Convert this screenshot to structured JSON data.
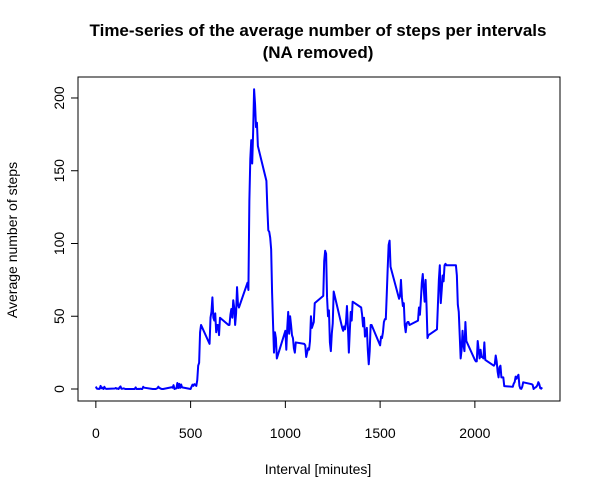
{
  "chart_data": {
    "type": "line",
    "title": "Time-series of the average number of steps per intervals",
    "subtitle": "(NA removed)",
    "x_label": "Interval [minutes]",
    "y_label": "Average number of steps",
    "x": [
      0,
      5,
      10,
      15,
      20,
      25,
      30,
      35,
      40,
      45,
      50,
      55,
      100,
      105,
      110,
      115,
      120,
      125,
      130,
      135,
      140,
      145,
      150,
      155,
      200,
      205,
      210,
      215,
      220,
      225,
      230,
      235,
      240,
      245,
      250,
      255,
      300,
      305,
      310,
      315,
      320,
      325,
      330,
      335,
      340,
      345,
      350,
      355,
      400,
      405,
      410,
      415,
      420,
      425,
      430,
      435,
      440,
      445,
      450,
      455,
      500,
      505,
      510,
      515,
      520,
      525,
      530,
      535,
      540,
      545,
      550,
      555,
      600,
      605,
      610,
      615,
      620,
      625,
      630,
      635,
      640,
      645,
      650,
      655,
      700,
      705,
      710,
      715,
      720,
      725,
      730,
      735,
      740,
      745,
      750,
      755,
      800,
      805,
      810,
      815,
      820,
      825,
      830,
      835,
      840,
      845,
      850,
      855,
      900,
      905,
      910,
      915,
      920,
      925,
      930,
      935,
      940,
      945,
      950,
      955,
      1000,
      1005,
      1010,
      1015,
      1020,
      1025,
      1030,
      1035,
      1040,
      1045,
      1050,
      1055,
      1100,
      1105,
      1110,
      1115,
      1120,
      1125,
      1130,
      1135,
      1140,
      1145,
      1150,
      1155,
      1200,
      1205,
      1210,
      1215,
      1220,
      1225,
      1230,
      1235,
      1240,
      1245,
      1250,
      1255,
      1300,
      1305,
      1310,
      1315,
      1320,
      1325,
      1330,
      1335,
      1340,
      1345,
      1350,
      1355,
      1400,
      1405,
      1410,
      1415,
      1420,
      1425,
      1430,
      1435,
      1440,
      1445,
      1450,
      1455,
      1500,
      1505,
      1510,
      1515,
      1520,
      1525,
      1530,
      1535,
      1540,
      1545,
      1550,
      1555,
      1600,
      1605,
      1610,
      1615,
      1620,
      1625,
      1630,
      1635,
      1640,
      1645,
      1650,
      1655,
      1700,
      1705,
      1710,
      1715,
      1720,
      1725,
      1730,
      1735,
      1740,
      1745,
      1750,
      1755,
      1800,
      1805,
      1810,
      1815,
      1820,
      1825,
      1830,
      1835,
      1840,
      1845,
      1850,
      1855,
      1900,
      1905,
      1910,
      1915,
      1920,
      1925,
      1930,
      1935,
      1940,
      1945,
      1950,
      1955,
      2000,
      2005,
      2010,
      2015,
      2020,
      2025,
      2030,
      2035,
      2040,
      2045,
      2050,
      2055,
      2100,
      2105,
      2110,
      2115,
      2120,
      2125,
      2130,
      2135,
      2140,
      2145,
      2150,
      2155,
      2200,
      2205,
      2210,
      2215,
      2220,
      2225,
      2230,
      2235,
      2240,
      2245,
      2250,
      2255,
      2300,
      2305,
      2310,
      2315,
      2320,
      2325,
      2330,
      2335,
      2340,
      2345,
      2350,
      2355
    ],
    "series": [
      {
        "name": "steps",
        "color": "#0000ff",
        "values": [
          1.7,
          0.3,
          0.1,
          0.2,
          0.1,
          2.1,
          0.5,
          0.9,
          0,
          1.5,
          0.3,
          0.1,
          0.3,
          0.7,
          0.2,
          0.3,
          0,
          1.1,
          1.8,
          0.2,
          0.2,
          0.4,
          0.3,
          0,
          0,
          0,
          1.1,
          0,
          0,
          0.1,
          0,
          0.2,
          0,
          0,
          1.5,
          0.9,
          0,
          0,
          0,
          0,
          0.2,
          0.6,
          1.6,
          0.6,
          0.5,
          0.1,
          0,
          0,
          1.2,
          0.9,
          2.6,
          0,
          0.3,
          0.4,
          4.1,
          0.7,
          3.5,
          0.8,
          3.1,
          1.1,
          0,
          1.6,
          3.0,
          2.2,
          3.3,
          3.0,
          2.1,
          6,
          16,
          18,
          39,
          44,
          31,
          49,
          53,
          63,
          49,
          47,
          52,
          39,
          44,
          44,
          37,
          49,
          44,
          44,
          51,
          55,
          49,
          61,
          56,
          44,
          52,
          70,
          58,
          56,
          73,
          68,
          129,
          158,
          171,
          155,
          177,
          206,
          196,
          180,
          183,
          167,
          143,
          124,
          109,
          108,
          104,
          96,
          66,
          45,
          25,
          39,
          35,
          21,
          40,
          27,
          42,
          53,
          38,
          50,
          44,
          37,
          35,
          28,
          25,
          32,
          31,
          30,
          22,
          25,
          28,
          27,
          33,
          50,
          42,
          44,
          46,
          59,
          64,
          88,
          95,
          93,
          63,
          50,
          54,
          32,
          26,
          38,
          45,
          67,
          42,
          40,
          43,
          41,
          46,
          57,
          43,
          25,
          40,
          53,
          47,
          60,
          56,
          51,
          43,
          49,
          36,
          37,
          42,
          27,
          17,
          26,
          44,
          44,
          30,
          36,
          35,
          39,
          46,
          48,
          48,
          65,
          83,
          99,
          102,
          84,
          62,
          64,
          75,
          63,
          57,
          59,
          44,
          39,
          45,
          46,
          46,
          44,
          47,
          56,
          51,
          61,
          73,
          79,
          69,
          60,
          75,
          57,
          35,
          37,
          41,
          58,
          75,
          85,
          59,
          68,
          78,
          74,
          85,
          86,
          85,
          85,
          85,
          78,
          58,
          53,
          37,
          21,
          27,
          40,
          30,
          26,
          46,
          33,
          20,
          19,
          19,
          33,
          27,
          21,
          27,
          22,
          22,
          21,
          32,
          20,
          16,
          17,
          23,
          19,
          12,
          8,
          15,
          16,
          8,
          8,
          8,
          2,
          1.5,
          3.7,
          4.8,
          8.5,
          7.1,
          8.7,
          9.8,
          2.2,
          0.3,
          0.1,
          1.6,
          4.6,
          3.3,
          2.8,
          0,
          0.8,
          1,
          1.6,
          2.6,
          4.7,
          3.3,
          0.6,
          0.2,
          1.1
        ]
      }
    ],
    "xlim": [
      -94.2,
      2449.2
    ],
    "ylim": [
      -8.25,
      214.42
    ],
    "xticks": [
      0,
      500,
      1000,
      1500,
      2000
    ],
    "yticks": [
      0,
      50,
      100,
      150,
      200
    ]
  }
}
